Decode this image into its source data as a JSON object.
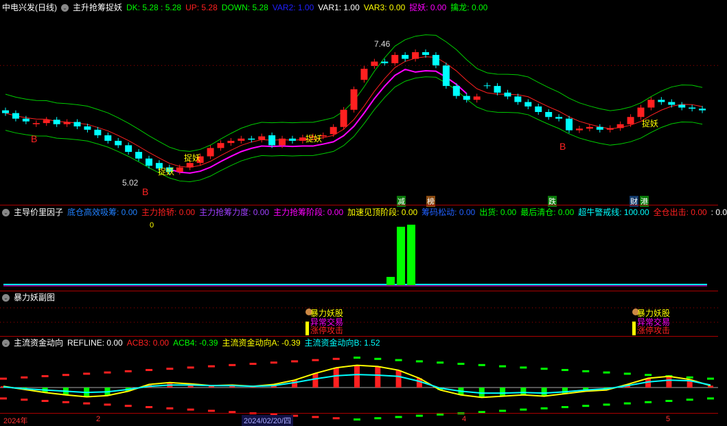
{
  "main": {
    "stock": "中电兴发(日线)",
    "indicator": "主升抢筹捉妖",
    "values": [
      {
        "t": "DK: 5.28 : 5.28",
        "c": "#00ff00"
      },
      {
        "t": "UP: 5.28",
        "c": "#ff2020"
      },
      {
        "t": "DOWN: 5.28",
        "c": "#00ff00"
      },
      {
        "t": "VAR2: 1.00",
        "c": "#2020ff"
      },
      {
        "t": "VAR1: 1.00",
        "c": "#ffffff"
      },
      {
        "t": "VAR3: 0.00",
        "c": "#ffff00"
      },
      {
        "t": "捉妖: 0.00",
        "c": "#ff00ff"
      },
      {
        "t": "擒龙: 0.00",
        "c": "#00ff00"
      }
    ],
    "high_label": "7.46",
    "low_label": "5.02",
    "zhuoyao_label": "捉妖",
    "b_label": "B",
    "tags": [
      {
        "t": "减",
        "bg": "#0a7a0a"
      },
      {
        "t": "榜",
        "bg": "#8a4a10"
      },
      {
        "t": "跌",
        "bg": "#0a7a0a"
      },
      {
        "t": "财",
        "bg": "#123a6a"
      },
      {
        "t": "港",
        "bg": "#0a7a0a"
      }
    ],
    "chart_data": {
      "type": "candlestick",
      "open": [
        6.25,
        6.2,
        6.1,
        6.0,
        6.02,
        6.08,
        6.0,
        6.04,
        5.96,
        5.9,
        5.8,
        5.7,
        5.62,
        5.5,
        5.38,
        5.3,
        5.22,
        5.14,
        5.22,
        5.3,
        5.42,
        5.57,
        5.66,
        5.7,
        5.74,
        5.72,
        5.8,
        5.62,
        5.74,
        5.7,
        5.76,
        5.78,
        5.82,
        5.95,
        6.26,
        6.8,
        7.05,
        7.13,
        7.1,
        7.25,
        7.18,
        7.3,
        7.25,
        7.06,
        6.69,
        6.51,
        6.44,
        6.7,
        6.69,
        6.57,
        6.5,
        6.4,
        6.32,
        6.22,
        6.13,
        6.1,
        5.89,
        5.92,
        5.95,
        5.9,
        5.93,
        6.0,
        6.13,
        6.3,
        6.44,
        6.4,
        6.35,
        6.3,
        6.28
      ],
      "close": [
        6.2,
        6.1,
        6.05,
        6.02,
        6.08,
        6.0,
        6.04,
        5.96,
        5.9,
        5.8,
        5.7,
        5.62,
        5.5,
        5.38,
        5.25,
        5.2,
        5.14,
        5.22,
        5.3,
        5.42,
        5.57,
        5.66,
        5.7,
        5.74,
        5.72,
        5.78,
        5.62,
        5.74,
        5.7,
        5.76,
        5.78,
        5.8,
        5.95,
        6.26,
        6.63,
        7.0,
        7.13,
        7.1,
        7.25,
        7.18,
        7.3,
        7.25,
        7.06,
        6.69,
        6.51,
        6.44,
        6.5,
        6.69,
        6.57,
        6.5,
        6.4,
        6.32,
        6.22,
        6.13,
        6.1,
        5.89,
        5.92,
        5.95,
        5.9,
        5.93,
        6.0,
        6.13,
        6.3,
        6.44,
        6.4,
        6.35,
        6.3,
        6.28,
        6.25
      ],
      "colors": {
        "up": "#ff2020",
        "down": "#00ffff",
        "ma": "#ff2020",
        "band": "#00cc00",
        "trend": "#ff00ff"
      }
    }
  },
  "factor": {
    "title": "主导价里因子",
    "values": [
      {
        "t": "底仓高效吸筹: 0.00",
        "c": "#2080ff"
      },
      {
        "t": "主力拾轿: 0.00",
        "c": "#ff2020"
      },
      {
        "t": "主力抢筹力度: 0.00",
        "c": "#a040ff"
      },
      {
        "t": "主力抢筹阶段: 0.00",
        "c": "#ff00ff"
      },
      {
        "t": "加速见顶阶段: 0.00",
        "c": "#ffff00"
      },
      {
        "t": "筹码松动: 0.00",
        "c": "#2060ff"
      },
      {
        "t": "出货: 0.00",
        "c": "#00ff00"
      },
      {
        "t": "最后清仓: 0.00",
        "c": "#00ff00"
      },
      {
        "t": "超牛警戒线: 100.00",
        "c": "#00ffff"
      },
      {
        "t": "全仓出击: 0.00",
        "c": "#ff2020"
      },
      {
        "t": ": 0.0",
        "c": "#ffffff"
      }
    ],
    "zero_label": "0",
    "bars": [
      12,
      85,
      88
    ]
  },
  "violent": {
    "title": "暴力妖副图",
    "signals": [
      {
        "t": "暴力妖股",
        "c": "#ffff00"
      },
      {
        "t": "异常交易",
        "c": "#ff00ff"
      },
      {
        "t": "涨停攻击",
        "c": "#ff2020"
      }
    ]
  },
  "flow": {
    "title": "主流资金动向",
    "values": [
      {
        "t": "REFLINE: 0.00",
        "c": "#ffffff"
      },
      {
        "t": "ACB3: 0.00",
        "c": "#ff2020"
      },
      {
        "t": "ACB4: -0.39",
        "c": "#00ff00"
      },
      {
        "t": "主流资金动向A: -0.39",
        "c": "#ffff00"
      },
      {
        "t": "主流资金动向B: 1.52",
        "c": "#00ffff"
      }
    ],
    "series_a": [
      0.2,
      -0.3,
      -0.8,
      -1.2,
      -1.5,
      -1.3,
      -0.6,
      0.5,
      0.8,
      0.6,
      0.3,
      0.4,
      0.2,
      0.5,
      1.2,
      2.3,
      3.2,
      3.6,
      3.4,
      2.8,
      1.5,
      -0.4,
      -1.2,
      -1.6,
      -1.4,
      -1.2,
      -1.4,
      -1.0,
      -0.6,
      -0.4,
      0.5,
      1.5,
      1.8,
      1.3,
      0.3
    ],
    "series_b": [
      0.1,
      -0.2,
      -0.4,
      -0.6,
      -0.8,
      -0.7,
      -0.3,
      0.2,
      0.4,
      0.4,
      0.3,
      0.3,
      0.2,
      0.3,
      0.8,
      1.4,
      1.9,
      2.1,
      2.0,
      1.8,
      1.0,
      -0.1,
      -0.6,
      -0.9,
      -0.9,
      -0.8,
      -0.9,
      -0.7,
      -0.4,
      -0.2,
      0.3,
      0.9,
      1.2,
      1.1,
      0.4
    ]
  },
  "axis": {
    "labels": [
      "2024年",
      "2",
      "2024/02/20/四",
      "4",
      "5"
    ]
  }
}
